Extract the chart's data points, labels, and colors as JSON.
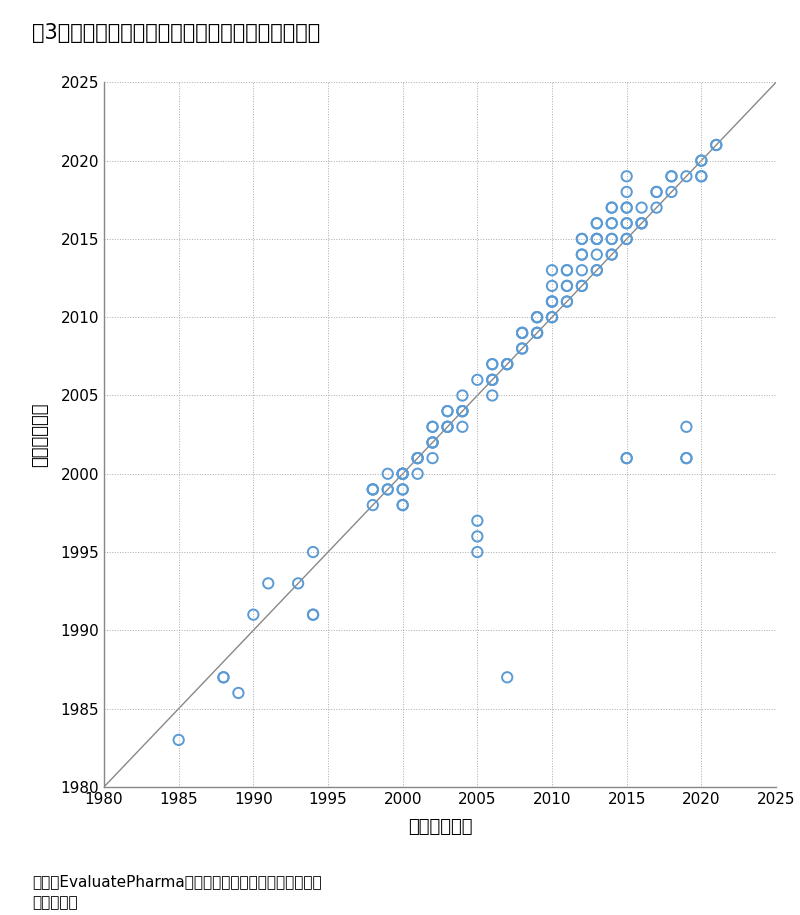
{
  "title": "嘶3　バイオ医薬品の日本初上市年と海外初上市年",
  "xlabel": "日本初上市年",
  "ylabel": "海外初上市年",
  "xlim": [
    1980,
    2025
  ],
  "ylim": [
    1980,
    2025
  ],
  "xticks": [
    1980,
    1985,
    1990,
    1995,
    2000,
    2005,
    2010,
    2015,
    2020,
    2025
  ],
  "yticks": [
    1980,
    1985,
    1990,
    1995,
    2000,
    2005,
    2010,
    2015,
    2020,
    2025
  ],
  "caption_line1": "出所：EvaluatePharmaに基づき医薬産業政策研究所にて",
  "caption_line2": "　　　作成",
  "marker_color": "#5B9BD5",
  "marker_size": 55,
  "data_x": [
    1985,
    1988,
    1988,
    1989,
    1990,
    1991,
    1993,
    1994,
    1994,
    1994,
    1998,
    1998,
    1998,
    1998,
    1999,
    1999,
    1999,
    2000,
    2000,
    2000,
    2000,
    2000,
    2000,
    2000,
    2000,
    2001,
    2001,
    2001,
    2001,
    2002,
    2002,
    2002,
    2002,
    2002,
    2002,
    2003,
    2003,
    2003,
    2003,
    2003,
    2004,
    2004,
    2004,
    2004,
    2004,
    2005,
    2005,
    2005,
    2005,
    2006,
    2006,
    2006,
    2006,
    2006,
    2006,
    2007,
    2007,
    2007,
    2007,
    2008,
    2008,
    2008,
    2008,
    2008,
    2009,
    2009,
    2009,
    2009,
    2009,
    2009,
    2010,
    2010,
    2010,
    2010,
    2010,
    2010,
    2010,
    2011,
    2011,
    2011,
    2011,
    2011,
    2011,
    2012,
    2012,
    2012,
    2012,
    2012,
    2012,
    2012,
    2013,
    2013,
    2013,
    2013,
    2013,
    2013,
    2013,
    2013,
    2014,
    2014,
    2014,
    2014,
    2014,
    2014,
    2014,
    2014,
    2015,
    2015,
    2015,
    2015,
    2015,
    2015,
    2015,
    2015,
    2016,
    2016,
    2016,
    2016,
    2017,
    2017,
    2017,
    2018,
    2018,
    2018,
    2019,
    2019,
    2020,
    2020,
    2020,
    2020,
    2021,
    2021,
    2015,
    2015,
    2019,
    2019
  ],
  "data_y": [
    1983,
    1987,
    1987,
    1986,
    1991,
    1993,
    1993,
    1995,
    1991,
    1991,
    1998,
    1999,
    1999,
    1999,
    1999,
    1999,
    2000,
    2000,
    2000,
    2000,
    2000,
    1999,
    1999,
    1998,
    1998,
    2001,
    2001,
    2001,
    2000,
    2002,
    2002,
    2002,
    2003,
    2003,
    2001,
    2003,
    2003,
    2004,
    2004,
    2003,
    2004,
    2004,
    2004,
    2005,
    2003,
    2006,
    1995,
    1996,
    1997,
    2006,
    2006,
    2007,
    2007,
    2006,
    2005,
    2007,
    2007,
    2007,
    1987,
    2008,
    2009,
    2009,
    2009,
    2008,
    2009,
    2009,
    2009,
    2010,
    2010,
    2010,
    2010,
    2010,
    2011,
    2011,
    2011,
    2012,
    2013,
    2011,
    2011,
    2012,
    2012,
    2013,
    2013,
    2012,
    2012,
    2013,
    2014,
    2014,
    2015,
    2015,
    2013,
    2013,
    2014,
    2015,
    2015,
    2015,
    2016,
    2016,
    2014,
    2014,
    2015,
    2015,
    2016,
    2016,
    2017,
    2017,
    2015,
    2015,
    2016,
    2016,
    2017,
    2017,
    2018,
    2019,
    2016,
    2016,
    2016,
    2017,
    2017,
    2018,
    2018,
    2018,
    2019,
    2019,
    2019,
    2001,
    2019,
    2020,
    2020,
    2019,
    2021,
    2021,
    2001,
    2001,
    2001,
    2003
  ]
}
